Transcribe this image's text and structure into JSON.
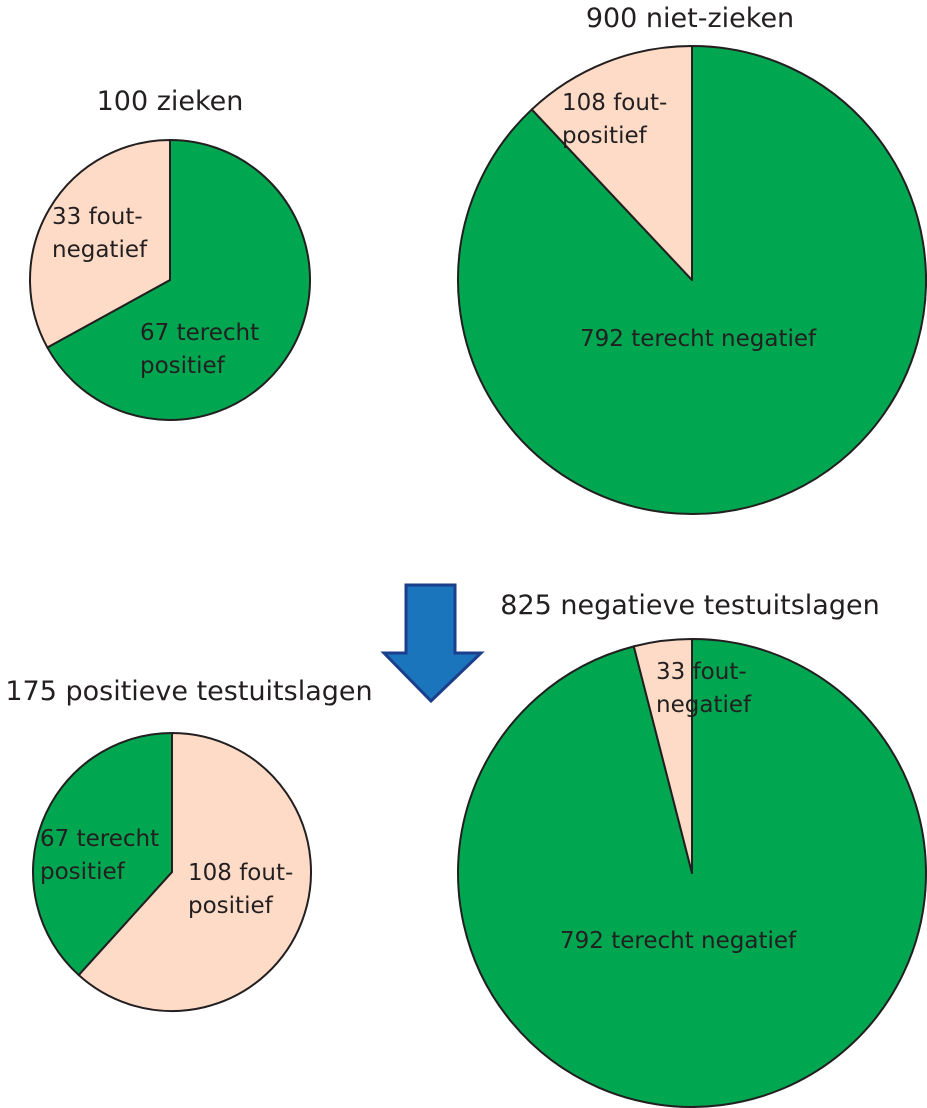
{
  "colors": {
    "green": "#00a650",
    "pink": "#fddbc7",
    "arrow": "#1b75bc",
    "outline": "#231f20"
  },
  "arrow": {
    "icon": "down-arrow-icon"
  },
  "chart_data": [
    {
      "type": "pie",
      "title": "100 zieken",
      "slices": [
        {
          "value": 67,
          "label": [
            "67 terecht",
            "positief"
          ],
          "color": "#00a650"
        },
        {
          "value": 33,
          "label": [
            "33 fout-",
            "negatief"
          ],
          "color": "#fddbc7"
        }
      ]
    },
    {
      "type": "pie",
      "title": "900 niet-zieken",
      "slices": [
        {
          "value": 792,
          "label": [
            "792 terecht negatief"
          ],
          "color": "#00a650"
        },
        {
          "value": 108,
          "label": [
            "108 fout-",
            "positief"
          ],
          "color": "#fddbc7"
        }
      ]
    },
    {
      "type": "pie",
      "title": "175 positieve testuitslagen",
      "slices": [
        {
          "value": 108,
          "label": [
            "108 fout-",
            "positief"
          ],
          "color": "#fddbc7"
        },
        {
          "value": 67,
          "label": [
            "67 terecht",
            "positief"
          ],
          "color": "#00a650"
        }
      ]
    },
    {
      "type": "pie",
      "title": "825 negatieve testuitslagen",
      "slices": [
        {
          "value": 792,
          "label": [
            "792 terecht negatief"
          ],
          "color": "#00a650"
        },
        {
          "value": 33,
          "label": [
            "33 fout-",
            "negatief"
          ],
          "color": "#fddbc7"
        }
      ]
    }
  ]
}
